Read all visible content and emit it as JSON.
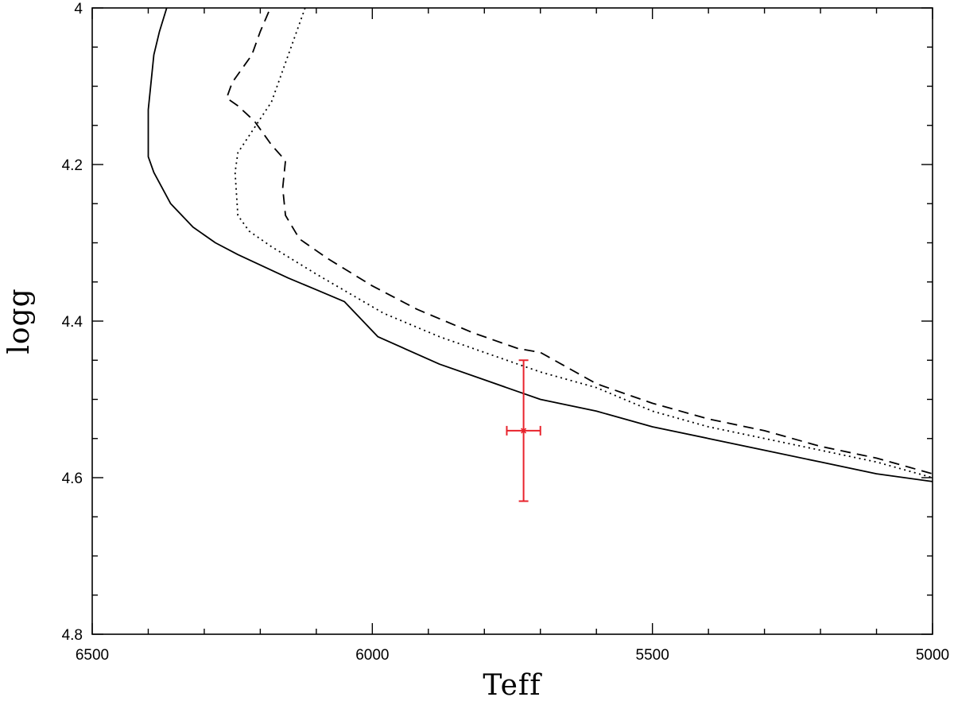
{
  "chart_data": {
    "type": "line",
    "title": "",
    "xlabel": "Teff",
    "ylabel": "logg",
    "xlim": [
      6500,
      5000
    ],
    "ylim": [
      4.0,
      4.8
    ],
    "x_reversed": true,
    "y_reversed": true,
    "grid": false,
    "x_major_ticks": [
      6500,
      6000,
      5500,
      5000
    ],
    "x_tick_labels": [
      "6500",
      "6000",
      "5500",
      "5000"
    ],
    "x_minor_step": 100,
    "y_major_ticks": [
      4.0,
      4.2,
      4.4,
      4.6,
      4.8
    ],
    "y_tick_labels": [
      "4",
      "4.2",
      "4.4",
      "4.6",
      "4.8"
    ],
    "y_minor_step": 0.05,
    "series": [
      {
        "style": "solid",
        "color": "#000000",
        "points": [
          [
            6367,
            4.0
          ],
          [
            6380,
            4.03
          ],
          [
            6390,
            4.06
          ],
          [
            6400,
            4.13
          ],
          [
            6400,
            4.19
          ],
          [
            6390,
            4.21
          ],
          [
            6360,
            4.25
          ],
          [
            6320,
            4.28
          ],
          [
            6280,
            4.3
          ],
          [
            6240,
            4.315
          ],
          [
            6150,
            4.345
          ],
          [
            6100,
            4.36
          ],
          [
            6050,
            4.375
          ],
          [
            5990,
            4.42
          ],
          [
            5880,
            4.455
          ],
          [
            5800,
            4.475
          ],
          [
            5740,
            4.49
          ],
          [
            5700,
            4.5
          ],
          [
            5600,
            4.515
          ],
          [
            5500,
            4.535
          ],
          [
            5400,
            4.55
          ],
          [
            5300,
            4.565
          ],
          [
            5200,
            4.58
          ],
          [
            5100,
            4.595
          ],
          [
            5000,
            4.605
          ]
        ]
      },
      {
        "style": "dotted",
        "color": "#000000",
        "points": [
          [
            6120,
            4.0
          ],
          [
            6180,
            4.12
          ],
          [
            6240,
            4.185
          ],
          [
            6245,
            4.21
          ],
          [
            6240,
            4.265
          ],
          [
            6220,
            4.285
          ],
          [
            6180,
            4.305
          ],
          [
            6100,
            4.34
          ],
          [
            6040,
            4.365
          ],
          [
            5980,
            4.39
          ],
          [
            5880,
            4.42
          ],
          [
            5800,
            4.44
          ],
          [
            5740,
            4.455
          ],
          [
            5700,
            4.465
          ],
          [
            5600,
            4.485
          ],
          [
            5500,
            4.515
          ],
          [
            5400,
            4.535
          ],
          [
            5300,
            4.55
          ],
          [
            5200,
            4.565
          ],
          [
            5100,
            4.58
          ],
          [
            5000,
            4.6
          ]
        ]
      },
      {
        "style": "dashed",
        "color": "#000000",
        "points": [
          [
            6185,
            4.005
          ],
          [
            6200,
            4.03
          ],
          [
            6215,
            4.06
          ],
          [
            6250,
            4.095
          ],
          [
            6260,
            4.115
          ],
          [
            6240,
            4.125
          ],
          [
            6210,
            4.145
          ],
          [
            6180,
            4.175
          ],
          [
            6155,
            4.195
          ],
          [
            6160,
            4.23
          ],
          [
            6155,
            4.265
          ],
          [
            6130,
            4.295
          ],
          [
            6080,
            4.32
          ],
          [
            6000,
            4.355
          ],
          [
            5920,
            4.385
          ],
          [
            5820,
            4.415
          ],
          [
            5740,
            4.435
          ],
          [
            5700,
            4.44
          ],
          [
            5600,
            4.48
          ],
          [
            5500,
            4.505
          ],
          [
            5400,
            4.525
          ],
          [
            5300,
            4.54
          ],
          [
            5200,
            4.56
          ],
          [
            5100,
            4.575
          ],
          [
            5000,
            4.595
          ]
        ]
      }
    ],
    "observation": {
      "color": "#e8232c",
      "x": 5730,
      "y": 4.54,
      "x_err": 30,
      "y_err_upper": 0.09,
      "y_err_lower": 0.09
    }
  }
}
